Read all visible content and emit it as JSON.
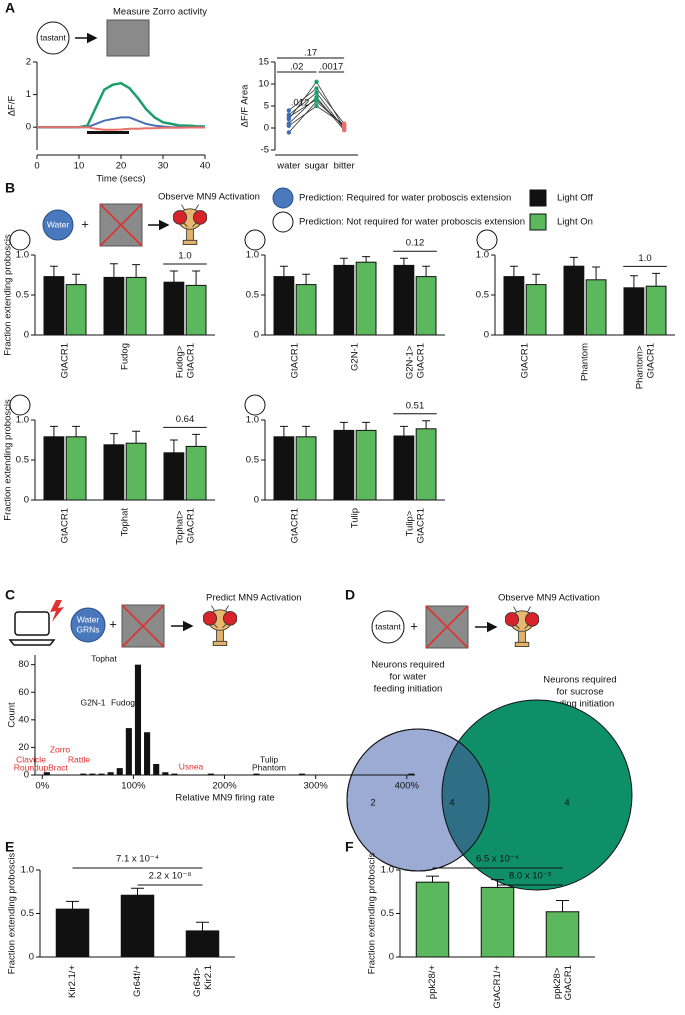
{
  "panel_labels": [
    "A",
    "B",
    "C",
    "D",
    "E",
    "F"
  ],
  "schematic_a": {
    "tastant": "tastant",
    "title": "Measure Zorro activity"
  },
  "schematic_b": {
    "water": "Water",
    "title": "Observe MN9 Activation",
    "required": "Prediction: Required for water proboscis extension",
    "not_required": "Prediction: Not required for water proboscis extension"
  },
  "schematic_c": {
    "title": "Predict MN9 Activation",
    "water_grns": [
      "Water",
      "GRNs"
    ]
  },
  "schematic_d": {
    "tastant": "tastant",
    "title": "Observe MN9 Activation",
    "water_label": [
      "Neurons required",
      "for water",
      "feeding initiation"
    ],
    "sucrose_label": [
      "Neurons required",
      "for sucrose",
      "feeding initiation"
    ],
    "venn": {
      "water_only": "2",
      "both": "4",
      "sucrose_only": "4"
    }
  },
  "chart_data": [
    {
      "type": "line",
      "x_label": "Time (secs)",
      "y_label": "ΔF/F",
      "x": [
        0,
        2,
        4,
        6,
        8,
        10,
        12,
        14,
        16,
        18,
        20,
        22,
        24,
        26,
        28,
        30,
        32,
        34,
        36,
        38,
        40
      ],
      "series": [
        {
          "color": "#1a9e6a",
          "values": [
            0,
            0,
            0,
            0,
            0,
            0,
            0.05,
            0.6,
            1.15,
            1.3,
            1.35,
            1.2,
            0.9,
            0.55,
            0.3,
            0.15,
            0.1,
            0.05,
            0.05,
            0.03,
            0.02
          ]
        },
        {
          "color": "#4a6fb5",
          "values": [
            0,
            0,
            0,
            0,
            0,
            0,
            0,
            0.1,
            0.2,
            0.25,
            0.3,
            0.3,
            0.2,
            0.1,
            0.05,
            0.02,
            0,
            0,
            0,
            0,
            0
          ]
        },
        {
          "color": "#e8706b",
          "values": [
            0,
            0,
            0,
            0,
            0,
            0,
            0,
            -0.05,
            -0.08,
            -0.08,
            -0.07,
            -0.05,
            -0.05,
            -0.03,
            -0.03,
            -0.02,
            -0.02,
            -0.02,
            -0.01,
            -0.01,
            -0.01
          ]
        }
      ],
      "xlim": [
        0,
        40
      ],
      "xticks": [
        0,
        10,
        20,
        30,
        40
      ],
      "ylim": [
        -0.7,
        2
      ],
      "yticks": [
        0,
        1,
        2
      ]
    },
    {
      "type": "paired",
      "y_label": "ΔF/F Area",
      "categories": [
        "water",
        "sugar",
        "bitter"
      ],
      "point_colors": [
        "#3a6fb5",
        "#1a9e6a",
        "#e8706b"
      ],
      "line_color": "#333333",
      "series": [
        {
          "values": [
            2,
            10.5,
            0
          ]
        },
        {
          "values": [
            4,
            9,
            1
          ]
        },
        {
          "values": [
            1,
            7,
            -0.5
          ]
        },
        {
          "values": [
            -1,
            6,
            0.5
          ]
        },
        {
          "values": [
            3,
            8,
            -0.2
          ]
        },
        {
          "values": [
            0.5,
            5,
            0.8
          ]
        },
        {
          "values": [
            2.5,
            6.5,
            0.3
          ]
        }
      ],
      "ylim": [
        -5,
        15
      ],
      "yticks": [
        -5,
        0,
        5,
        10,
        15
      ],
      "annotations": [
        ".012",
        ".02",
        ".0017",
        ".17"
      ]
    },
    {
      "type": "bar",
      "y_label": "Fraction extending proboscis",
      "categories": [
        "GtACR1",
        "Fudog",
        "Fudog> GtACR1"
      ],
      "series": [
        {
          "name": "Light Off",
          "color": "#111111",
          "values": [
            0.73,
            0.72,
            0.66
          ],
          "errors": [
            0.13,
            0.17,
            0.14
          ]
        },
        {
          "name": "Light On",
          "color": "#5cb85c",
          "values": [
            0.63,
            0.72,
            0.62
          ],
          "errors": [
            0.13,
            0.16,
            0.18
          ]
        }
      ],
      "ylim": [
        0,
        1
      ],
      "yticks": [
        0,
        0.5,
        {
          "value": 1,
          "label": "1.0"
        }
      ],
      "p_value": "1.0"
    },
    {
      "type": "bar",
      "categories": [
        "GtACR1",
        "G2N-1",
        "G2N-1> GtACR1"
      ],
      "series": [
        {
          "name": "Light Off",
          "color": "#111111",
          "values": [
            0.73,
            0.87,
            0.87
          ],
          "errors": [
            0.13,
            0.09,
            0.09
          ]
        },
        {
          "name": "Light On",
          "color": "#5cb85c",
          "values": [
            0.63,
            0.91,
            0.73
          ],
          "errors": [
            0.13,
            0.07,
            0.13
          ]
        }
      ],
      "ylim": [
        0,
        1
      ],
      "yticks": [
        0,
        0.5,
        {
          "value": 1,
          "label": "1.0"
        }
      ],
      "p_value": "0.12"
    },
    {
      "type": "bar",
      "categories": [
        "GtACR1",
        "Phantom",
        "Phantom> GtACR1"
      ],
      "series": [
        {
          "name": "Light Off",
          "color": "#111111",
          "values": [
            0.73,
            0.86,
            0.59
          ],
          "errors": [
            0.13,
            0.11,
            0.15
          ]
        },
        {
          "name": "Light On",
          "color": "#5cb85c",
          "values": [
            0.63,
            0.69,
            0.61
          ],
          "errors": [
            0.13,
            0.16,
            0.16
          ]
        }
      ],
      "ylim": [
        0,
        1
      ],
      "yticks": [
        0,
        0.5,
        {
          "value": 1,
          "label": "1.0"
        }
      ],
      "p_value": "1.0"
    },
    {
      "type": "bar",
      "y_label": "Fraction extending proboscis",
      "categories": [
        "GtACR1",
        "Tophat",
        "Tophat> GtACR1"
      ],
      "series": [
        {
          "name": "Light Off",
          "color": "#111111",
          "values": [
            0.79,
            0.69,
            0.59
          ],
          "errors": [
            0.13,
            0.14,
            0.16
          ]
        },
        {
          "name": "Light On",
          "color": "#5cb85c",
          "values": [
            0.79,
            0.71,
            0.67
          ],
          "errors": [
            0.13,
            0.15,
            0.15
          ]
        }
      ],
      "ylim": [
        0,
        1
      ],
      "yticks": [
        0,
        0.5,
        {
          "value": 1,
          "label": "1.0"
        }
      ],
      "p_value": "0.64"
    },
    {
      "type": "bar",
      "categories": [
        "GtACR1",
        "Tulip",
        "Tulip> GtACR1"
      ],
      "series": [
        {
          "name": "Light Off",
          "color": "#111111",
          "values": [
            0.79,
            0.87,
            0.8
          ],
          "errors": [
            0.13,
            0.1,
            0.12
          ]
        },
        {
          "name": "Light On",
          "color": "#5cb85c",
          "values": [
            0.79,
            0.87,
            0.89
          ],
          "errors": [
            0.13,
            0.1,
            0.1
          ]
        }
      ],
      "ylim": [
        0,
        1
      ],
      "yticks": [
        0,
        0.5,
        {
          "value": 1,
          "label": "1.0"
        }
      ],
      "p_value": "0.51"
    },
    {
      "type": "histogram",
      "x_label": "Relative MN9 firing rate",
      "y_label": "Count",
      "color": "#111111",
      "bins": [
        -10,
        0,
        10,
        20,
        30,
        40,
        50,
        60,
        70,
        80,
        90,
        100,
        110,
        120,
        130,
        140,
        150,
        160,
        170,
        180,
        190,
        200,
        210,
        220,
        230,
        240,
        250,
        260,
        270,
        280,
        290,
        300,
        310,
        320,
        330,
        340,
        350,
        360,
        370,
        380,
        390,
        400,
        410
      ],
      "counts": [
        0,
        2,
        0,
        0,
        0,
        1,
        1,
        1,
        2,
        5,
        34,
        80,
        31,
        8,
        2,
        1,
        0,
        0,
        0,
        1,
        0,
        0,
        0,
        0,
        1,
        0,
        0,
        0,
        0,
        1,
        0,
        0,
        0,
        0,
        0,
        0,
        0,
        0,
        0,
        0,
        0,
        1
      ],
      "xlim": [
        -8,
        409
      ],
      "xticks": [
        {
          "value": 0,
          "label": "0%"
        },
        {
          "value": 100,
          "label": "100%"
        },
        {
          "value": 200,
          "label": "200%"
        },
        {
          "value": 300,
          "label": "300%"
        },
        {
          "value": 400,
          "label": "400%"
        }
      ],
      "ylim": [
        0,
        87
      ],
      "yticks": [
        0,
        20,
        40,
        60,
        80
      ],
      "annotations": [
        {
          "text": "Clavicle",
          "color": "#e0312f"
        },
        {
          "text": "Roundup",
          "color": "#e0312f"
        },
        {
          "text": "Zorro",
          "color": "#e0312f"
        },
        {
          "text": "Rattle",
          "color": "#e0312f"
        },
        {
          "text": "Bract",
          "color": "#e0312f"
        },
        {
          "text": "G2N-1",
          "color": "#111111"
        },
        {
          "text": "Tophat",
          "color": "#111111"
        },
        {
          "text": "Fudog",
          "color": "#111111"
        },
        {
          "text": "Usnea",
          "color": "#e0312f"
        },
        {
          "text": "Tulip",
          "color": "#111111"
        },
        {
          "text": "Phantom",
          "color": "#111111"
        }
      ]
    },
    {
      "type": "bar",
      "y_label": "Fraction extending proboscis",
      "categories": [
        "Kir2.1/+",
        "Gr64f/+",
        "Gr64f> Kir2.1"
      ],
      "series": [
        {
          "color": "#111111",
          "values": [
            0.55,
            0.71,
            0.3
          ],
          "errors": [
            0.09,
            0.08,
            0.1
          ]
        }
      ],
      "ylim": [
        0,
        1
      ],
      "yticks": [
        0,
        0.5,
        {
          "value": 1,
          "label": "1.0"
        }
      ],
      "p_values": [
        "7.1 x 10⁻⁴",
        "2.2 x 10⁻⁸"
      ]
    },
    {
      "type": "bar",
      "y_label": "Fraction extending proboscis",
      "categories": [
        "ppk28/+",
        "GtACR1/+",
        "ppk28> GtACR1"
      ],
      "series": [
        {
          "color": "#5cb85c",
          "values": [
            0.86,
            0.8,
            0.52
          ],
          "errors": [
            0.07,
            0.09,
            0.13
          ]
        }
      ],
      "ylim": [
        0,
        1
      ],
      "yticks": [
        0,
        0.5,
        {
          "value": 1,
          "label": "1.0"
        }
      ],
      "p_values": [
        "6.5 x 10⁻⁴",
        "8.0 x 10⁻³"
      ]
    }
  ]
}
